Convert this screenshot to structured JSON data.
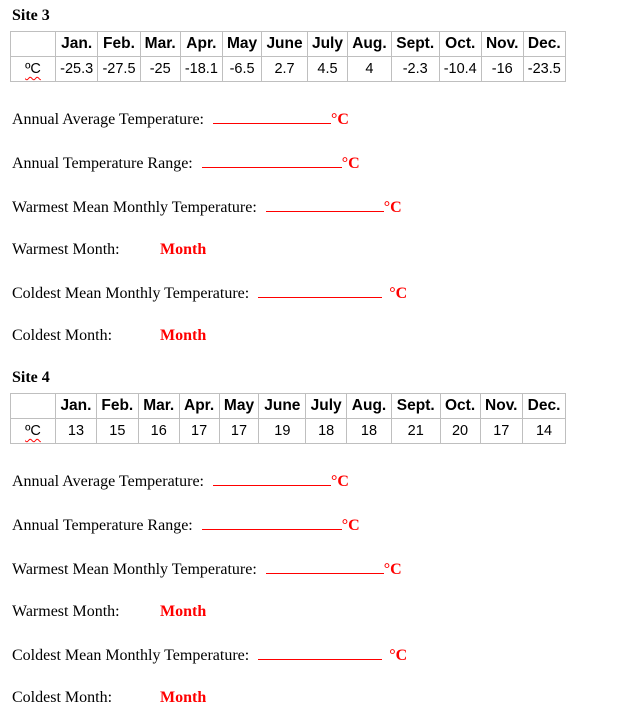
{
  "months": [
    "Jan.",
    "Feb.",
    "Mar.",
    "Apr.",
    "May",
    "June",
    "July",
    "Aug.",
    "Sept.",
    "Oct.",
    "Nov.",
    "Dec."
  ],
  "sites": [
    {
      "title": "Site 3",
      "unit_label": "ºC",
      "values": [
        "-25.3",
        "-27.5",
        "-25",
        "-18.1",
        "-6.5",
        "2.7",
        "4.5",
        "4",
        "-2.3",
        "-10.4",
        "-16",
        "-23.5"
      ]
    },
    {
      "title": "Site 4",
      "unit_label": "ºC",
      "values": [
        "13",
        "15",
        "16",
        "17",
        "17",
        "19",
        "18",
        "18",
        "21",
        "20",
        "17",
        "14"
      ]
    }
  ],
  "questions": {
    "annual_average": "Annual Average Temperature:",
    "annual_range": "Annual Temperature Range:",
    "warmest_mean": "Warmest Mean Monthly Temperature:",
    "warmest_month": "Warmest Month:",
    "coldest_mean": "Coldest Mean Monthly Temperature:",
    "coldest_month": "Coldest Month:"
  },
  "placeholders": {
    "unit": "°C",
    "month": "Month"
  },
  "colors": {
    "accent_red": "#FF0000",
    "table_border": "#BFBFBF",
    "text": "#000000"
  }
}
